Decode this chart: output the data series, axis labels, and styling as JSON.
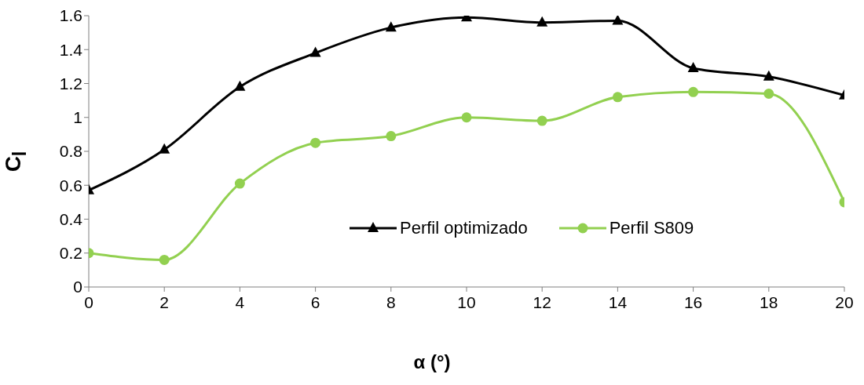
{
  "chart_data": {
    "type": "line",
    "xlabel": "α (°)",
    "ylabel": "C$_{l}$",
    "x": [
      0,
      2,
      4,
      6,
      8,
      10,
      12,
      14,
      16,
      18,
      20
    ],
    "series": [
      {
        "name": "Perfil optimizado",
        "color": "#000000",
        "marker": "triangle",
        "values": [
          0.57,
          0.81,
          1.18,
          1.38,
          1.53,
          1.59,
          1.56,
          1.57,
          1.29,
          1.24,
          1.13
        ]
      },
      {
        "name": "Perfil S809",
        "color": "#92d050",
        "marker": "circle",
        "values": [
          0.2,
          0.16,
          0.61,
          0.85,
          0.89,
          1.0,
          0.98,
          1.12,
          1.15,
          1.14,
          0.5
        ]
      }
    ],
    "xlim": [
      0,
      20
    ],
    "xticks": [
      0,
      2,
      4,
      6,
      8,
      10,
      12,
      14,
      16,
      18,
      20
    ],
    "ylim": [
      0,
      1.6
    ],
    "yticks": [
      0,
      0.2,
      0.4,
      0.6,
      0.8,
      1,
      1.2,
      1.4,
      1.6
    ],
    "grid": false,
    "legend": "right",
    "line_style": "solid"
  }
}
